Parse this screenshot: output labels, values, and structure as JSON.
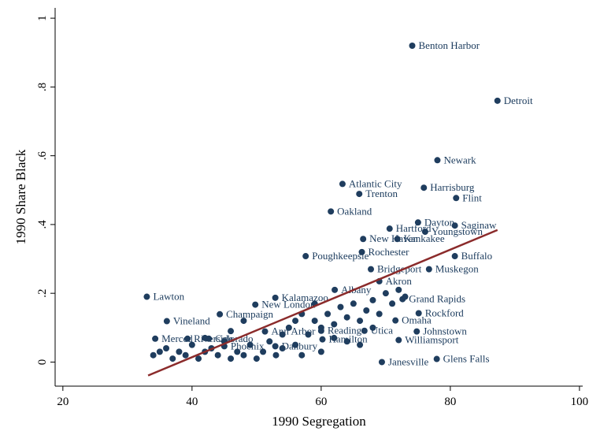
{
  "chart_data": {
    "type": "scatter",
    "x_label": "1990 Segregation",
    "y_label": "1990 Share Black",
    "xlim": [
      18.8,
      100.5
    ],
    "ylim": [
      -0.07,
      1.03
    ],
    "xticks": [
      20,
      40,
      60,
      80,
      100
    ],
    "yticks": [
      0,
      {
        "value": 0.2,
        "label": ".2"
      },
      {
        "value": 0.4,
        "label": ".4"
      },
      {
        "value": 0.6,
        "label": ".6"
      },
      {
        "value": 0.8,
        "label": ".8"
      },
      1
    ],
    "color": "#1f3d5e",
    "x": [
      74.1,
      87.3,
      78.0,
      63.3,
      75.9,
      65.9,
      80.9,
      61.5,
      75.0,
      80.7,
      76.1,
      70.6,
      66.5,
      71.8,
      66.3,
      57.6,
      80.7,
      67.7,
      76.7,
      69.0,
      62.1,
      33.0,
      72.6,
      75.1,
      71.5,
      36.1,
      74.8,
      72.0,
      60.2,
      66.7,
      44.3,
      49.8,
      52.9,
      51.3,
      52.9,
      45.0,
      34.3,
      39.3,
      42.6,
      60.0,
      69.4,
      77.9,
      34,
      35,
      36,
      37,
      38,
      39,
      40,
      41,
      42,
      43,
      44,
      45,
      46,
      47,
      48,
      49,
      50,
      51,
      52,
      53,
      54,
      55,
      56,
      57,
      58,
      59,
      60,
      61,
      62,
      63,
      64,
      65,
      66,
      67,
      68,
      69,
      70,
      71,
      72,
      73,
      57,
      59,
      60,
      62,
      64,
      66,
      68,
      56,
      54,
      48,
      46,
      42
    ],
    "values": [
      0.92,
      0.76,
      0.587,
      0.518,
      0.507,
      0.489,
      0.477,
      0.438,
      0.406,
      0.397,
      0.379,
      0.388,
      0.358,
      0.358,
      0.32,
      0.308,
      0.308,
      0.27,
      0.27,
      0.235,
      0.21,
      0.19,
      0.183,
      0.142,
      0.121,
      0.119,
      0.089,
      0.064,
      0.066,
      0.091,
      0.139,
      0.167,
      0.187,
      0.089,
      0.046,
      0.046,
      0.068,
      0.068,
      0.068,
      0.091,
      0,
      0.009,
      0.02,
      0.03,
      0.04,
      0.01,
      0.03,
      0.02,
      0.05,
      0.01,
      0.03,
      0.04,
      0.02,
      0.06,
      0.01,
      0.03,
      0.02,
      0.05,
      0.01,
      0.03,
      0.06,
      0.02,
      0.04,
      0.1,
      0.05,
      0.02,
      0.08,
      0.12,
      0.03,
      0.14,
      0.11,
      0.16,
      0.13,
      0.17,
      0.12,
      0.15,
      0.18,
      0.14,
      0.2,
      0.17,
      0.21,
      0.19,
      0.14,
      0.17,
      0.1,
      0.07,
      0.06,
      0.05,
      0.1,
      0.12,
      0.08,
      0.12,
      0.09,
      0.07
    ],
    "labels": [
      "Benton Harbor",
      "Detroit",
      "Newark",
      "Atlantic City",
      "Harrisburg",
      "Trenton",
      "Flint",
      "Oakland",
      "Dayton",
      "Saginaw",
      "Youngstown",
      "Hartford",
      "New Haven",
      "Kankakee",
      "Rochester",
      "Poughkeepsie",
      "Buffalo",
      "Bridgeport",
      "Muskegon",
      "Akron",
      "Albany",
      "Lawton",
      "Grand Rapids",
      "Rockford",
      "Omaha",
      "Vineland",
      "Johnstown",
      "Williamsport",
      "Hamilton",
      "Utica",
      "Champaign",
      "New London",
      "Kalamazoo",
      "Ann Arbor",
      "Danbury",
      "Phoenix",
      "Merced",
      "Riverside",
      "Colorado",
      "Reading",
      "Janesville",
      "Glens Falls",
      null,
      null,
      null,
      null,
      null,
      null,
      null,
      null,
      null,
      null,
      null,
      null,
      null,
      null,
      null,
      null,
      null,
      null,
      null,
      null,
      null,
      null,
      null,
      null,
      null,
      null,
      null,
      null,
      null,
      null,
      null,
      null,
      null,
      null,
      null,
      null,
      null,
      null,
      null,
      null,
      null,
      null,
      null,
      null,
      null,
      null,
      null,
      null,
      null,
      null,
      null,
      null
    ],
    "fit_line": {
      "x": [
        33.2,
        87.3
      ],
      "values": [
        -0.039,
        0.384
      ],
      "color": "#8b2b2b"
    }
  }
}
